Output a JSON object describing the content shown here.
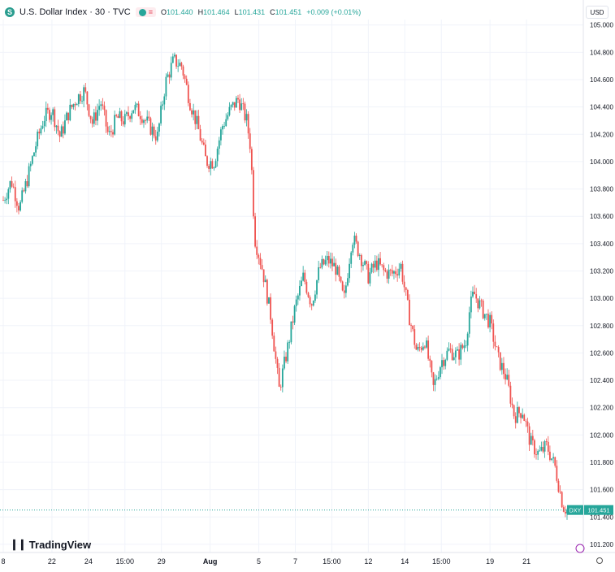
{
  "header": {
    "symbol_icon": "S",
    "title": "U.S. Dollar Index · 30 · TVC",
    "flag_icon": "green-dot-icon",
    "eq_label": "=",
    "ohlc": [
      {
        "label": "O",
        "value": "101.440"
      },
      {
        "label": "H",
        "value": "101.464"
      },
      {
        "label": "L",
        "value": "101.431"
      },
      {
        "label": "C",
        "value": "101.451"
      }
    ],
    "change": "+0.009 (+0.01%)"
  },
  "currency_button": "USD",
  "logo_text": "TradingView",
  "colors": {
    "up": "#26a69a",
    "down": "#ef5350",
    "grid": "#f0f3fa",
    "text": "#131722"
  },
  "chart_data": {
    "type": "candlestick",
    "symbol": "DXY",
    "last_price": 101.451,
    "price_label": "DXY",
    "price_label_value": "101.451",
    "y_ticks": [
      "101.200",
      "101.400",
      "101.600",
      "101.800",
      "102.000",
      "102.200",
      "102.400",
      "102.600",
      "102.800",
      "103.000",
      "103.200",
      "103.400",
      "103.600",
      "103.800",
      "104.000",
      "104.200",
      "104.400",
      "104.600",
      "104.800",
      "105.000"
    ],
    "x_ticks": [
      "8",
      "22",
      "24",
      "15:00",
      "29",
      "Aug",
      "5",
      "7",
      "15:00",
      "12",
      "14",
      "15:00",
      "19",
      "21"
    ],
    "ylim": [
      101.14,
      105.04
    ],
    "path_points": [
      [
        0,
        103.72
      ],
      [
        2,
        103.86
      ],
      [
        4,
        103.66
      ],
      [
        6,
        103.88
      ],
      [
        8,
        104.12
      ],
      [
        10,
        104.32
      ],
      [
        12,
        104.38
      ],
      [
        14,
        104.18
      ],
      [
        16,
        104.35
      ],
      [
        18,
        104.46
      ],
      [
        20,
        104.52
      ],
      [
        22,
        104.28
      ],
      [
        24,
        104.44
      ],
      [
        26,
        104.18
      ],
      [
        28,
        104.32
      ],
      [
        30,
        104.3
      ],
      [
        32,
        104.4
      ],
      [
        34,
        104.35
      ],
      [
        36,
        104.26
      ],
      [
        38,
        104.18
      ],
      [
        40,
        104.58
      ],
      [
        42,
        104.74
      ],
      [
        44,
        104.7
      ],
      [
        46,
        104.44
      ],
      [
        48,
        104.25
      ],
      [
        50,
        104.0
      ],
      [
        52,
        104.0
      ],
      [
        54,
        104.26
      ],
      [
        56,
        104.38
      ],
      [
        58,
        104.46
      ],
      [
        60,
        104.3
      ],
      [
        61,
        104.1
      ],
      [
        62,
        103.44
      ],
      [
        64,
        103.2
      ],
      [
        66,
        102.86
      ],
      [
        68,
        102.33
      ],
      [
        70,
        102.62
      ],
      [
        72,
        102.94
      ],
      [
        74,
        103.16
      ],
      [
        76,
        102.96
      ],
      [
        78,
        103.22
      ],
      [
        80,
        103.28
      ],
      [
        82,
        103.22
      ],
      [
        84,
        102.98
      ],
      [
        86,
        103.45
      ],
      [
        88,
        103.32
      ],
      [
        90,
        103.16
      ],
      [
        92,
        103.26
      ],
      [
        94,
        103.19
      ],
      [
        96,
        103.18
      ],
      [
        98,
        103.24
      ],
      [
        100,
        102.88
      ],
      [
        102,
        102.6
      ],
      [
        104,
        102.7
      ],
      [
        106,
        102.34
      ],
      [
        108,
        102.54
      ],
      [
        110,
        102.62
      ],
      [
        112,
        102.58
      ],
      [
        114,
        102.68
      ],
      [
        115,
        102.92
      ],
      [
        116,
        103.04
      ],
      [
        118,
        102.92
      ],
      [
        120,
        102.82
      ],
      [
        122,
        102.56
      ],
      [
        124,
        102.42
      ],
      [
        126,
        102.14
      ],
      [
        128,
        102.18
      ],
      [
        130,
        101.94
      ],
      [
        132,
        101.86
      ],
      [
        134,
        101.92
      ],
      [
        136,
        101.77
      ],
      [
        138,
        101.48
      ],
      [
        139,
        101.45
      ]
    ],
    "x_tick_positions": [
      0,
      12,
      21,
      30,
      39,
      51,
      63,
      72,
      81,
      90,
      99,
      108,
      120,
      129
    ]
  }
}
